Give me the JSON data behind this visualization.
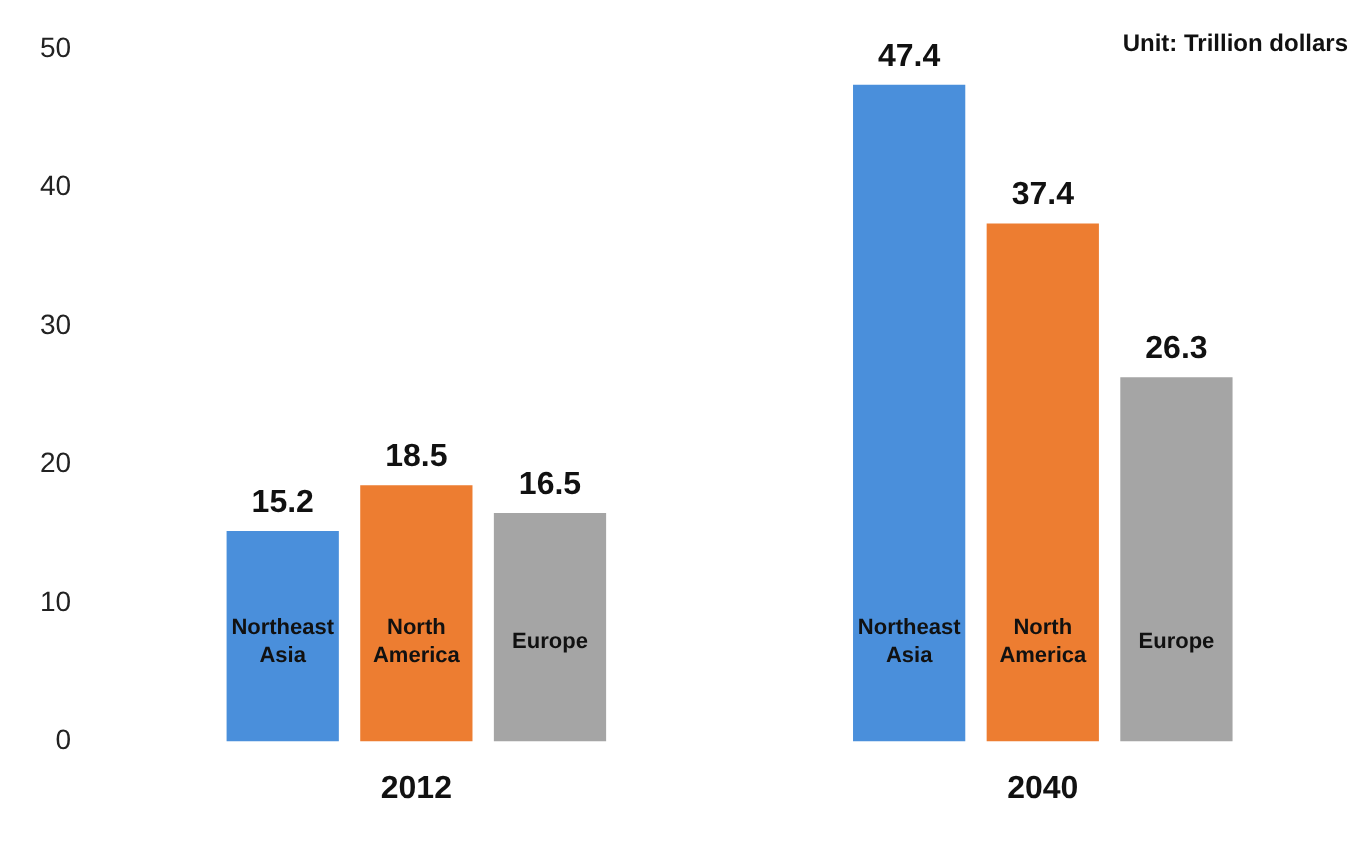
{
  "chart_data": {
    "type": "bar",
    "categories": [
      "2012",
      "2040"
    ],
    "series": [
      {
        "name": "Northeast Asia",
        "color": "#4a8fdb",
        "values": [
          15.2,
          47.4
        ]
      },
      {
        "name": "North America",
        "color": "#ed7d31",
        "values": [
          18.5,
          37.4
        ]
      },
      {
        "name": "Europe",
        "color": "#a5a5a5",
        "values": [
          16.5,
          26.3
        ]
      }
    ],
    "ylim": [
      0,
      50
    ],
    "yticks": [
      0,
      10,
      20,
      30,
      40,
      50
    ],
    "grid": false,
    "legend": false,
    "data_labels": true,
    "annotations": [
      "Unit: Trillion dollars"
    ]
  }
}
